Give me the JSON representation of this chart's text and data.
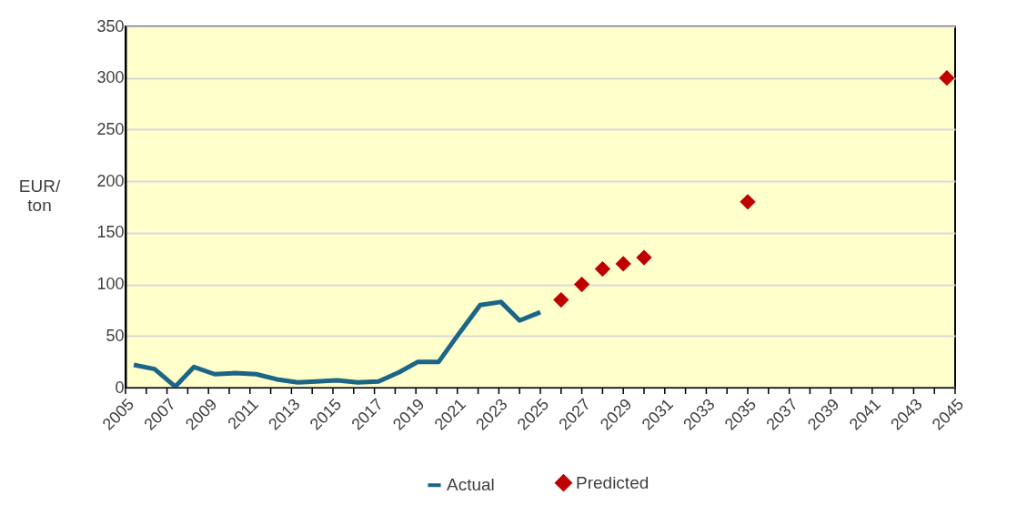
{
  "chart_data": {
    "type": "line",
    "ylabel": "EUR/\nton",
    "xlim": [
      2005,
      2045
    ],
    "ylim": [
      0,
      350
    ],
    "xticks": [
      2005,
      {
        "value": 2006,
        "label": null
      },
      2007,
      {
        "value": 2008,
        "label": null
      },
      2009,
      {
        "value": 2010,
        "label": null
      },
      2011,
      {
        "value": 2012,
        "label": null
      },
      2013,
      {
        "value": 2014,
        "label": null
      },
      2015,
      {
        "value": 2016,
        "label": null
      },
      2017,
      {
        "value": 2018,
        "label": null
      },
      2019,
      {
        "value": 2020,
        "label": null
      },
      2021,
      {
        "value": 2022,
        "label": null
      },
      2023,
      {
        "value": 2024,
        "label": null
      },
      2025,
      {
        "value": 2026,
        "label": null
      },
      2027,
      {
        "value": 2028,
        "label": null
      },
      2029,
      {
        "value": 2030,
        "label": null
      },
      2031,
      {
        "value": 2032,
        "label": null
      },
      2033,
      {
        "value": 2034,
        "label": null
      },
      2035,
      {
        "value": 2036,
        "label": null
      },
      2037,
      {
        "value": 2038,
        "label": null
      },
      2039,
      {
        "value": 2040,
        "label": null
      },
      2041,
      {
        "value": 2042,
        "label": null
      },
      2043,
      {
        "value": 2044,
        "label": null
      },
      2045
    ],
    "yticks": [
      0,
      50,
      100,
      150,
      200,
      250,
      300,
      350
    ],
    "grid": "y",
    "legend": "bottom",
    "series": [
      {
        "name": "Actual",
        "color": "#1b6586",
        "x": [
          2005.4,
          2006.4,
          2007.4,
          2008.3,
          2009.3,
          2010.3,
          2011.3,
          2012.3,
          2013.3,
          2014.2,
          2015.2,
          2016.2,
          2017.2,
          2018.2,
          2019.1,
          2020.1,
          2021.1,
          2022.1,
          2023.1,
          2024.0,
          2025.0
        ],
        "values": [
          22,
          18,
          1,
          20,
          13,
          14,
          13,
          8,
          5,
          6,
          7,
          5,
          6,
          15,
          25,
          25,
          53,
          80,
          83,
          65,
          73
        ]
      },
      {
        "name": "Predicted",
        "type": "scatter",
        "marker": "diamond",
        "color": "#c00000",
        "x": [
          2026,
          2027,
          2028,
          2029,
          2030,
          2035,
          2044.6
        ],
        "values": [
          85,
          100,
          115,
          120,
          126,
          180,
          300
        ]
      }
    ]
  }
}
